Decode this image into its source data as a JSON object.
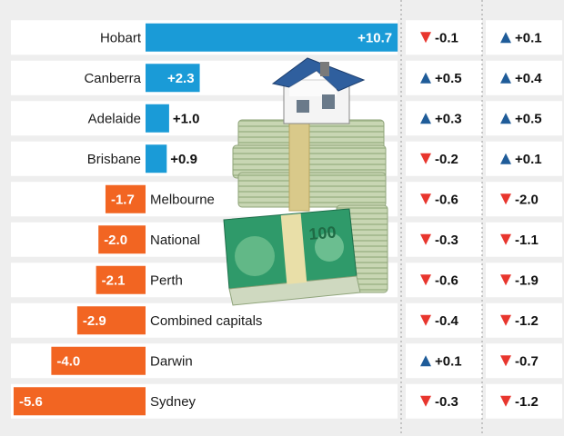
{
  "chart_data": {
    "type": "bar",
    "categories": [
      "Hobart",
      "Canberra",
      "Adelaide",
      "Brisbane",
      "Melbourne",
      "National",
      "Perth",
      "Combined capitals",
      "Darwin",
      "Sydney"
    ],
    "values": [
      10.7,
      2.3,
      1.0,
      0.9,
      -1.7,
      -2.0,
      -2.1,
      -2.9,
      -4.0,
      -5.6
    ],
    "value_labels": [
      "+10.7",
      "+2.3",
      "+1.0",
      "+0.9",
      "-1.7",
      "-2.0",
      "-2.1",
      "-2.9",
      "-4.0",
      "-5.6"
    ],
    "change_columns": [
      [
        "-0.1",
        "+0.5",
        "+0.3",
        "-0.2",
        "-0.6",
        "-0.3",
        "-0.6",
        "-0.4",
        "+0.1",
        "-0.3"
      ],
      [
        "+0.1",
        "+0.4",
        "+0.5",
        "+0.1",
        "-2.0",
        "-1.1",
        "-1.9",
        "-1.2",
        "-0.7",
        "-1.2"
      ]
    ],
    "colors": {
      "positive": "#1a9bd7",
      "negative": "#f26522",
      "up_arrow": "#1f5c99",
      "down_arrow": "#e8362e"
    },
    "illustration": "house-on-money-stack"
  }
}
